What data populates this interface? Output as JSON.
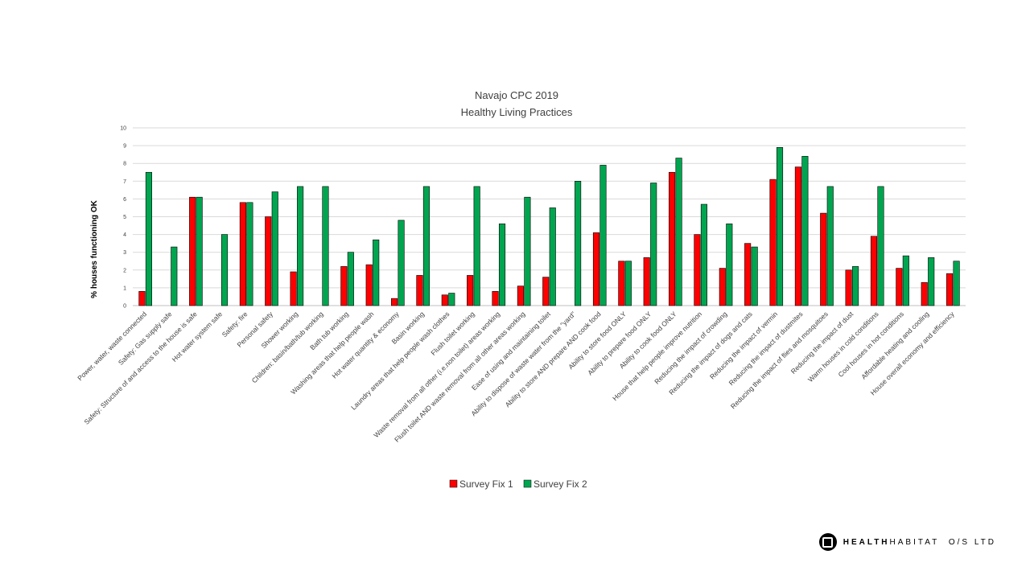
{
  "chart_data": {
    "type": "bar",
    "title": [
      "Navajo CPC 2019",
      "Healthy Living Practices"
    ],
    "xlabel": "",
    "ylabel": "% houses functioning OK",
    "ylim": [
      0,
      10
    ],
    "yticks": [
      "0",
      "1",
      "2",
      "3",
      "4",
      "5",
      "6",
      "7",
      "8",
      "9",
      "10"
    ],
    "grid": "horizontal",
    "legend": "bottom",
    "categories": [
      "Power, water, waste connected",
      "Safety: Gas supply safe",
      "Safety: Structure of and access to the house is safe",
      "Hot water system safe",
      "Safety: fire",
      "Personal safety",
      "Shower working",
      "Children: basin/bath/tub working",
      "Bath tub working",
      "Washing areas that help people wash",
      "Hot water quantity & economy",
      "Basin working",
      "Laundry areas that help people wash clothes",
      "Flush toilet working",
      "Waste removal from all other (i.e.non toilet) areas working",
      "Flush toilet AND waste removal from all other areas working",
      "Ease of using and maintaining toilet",
      "Ability to dispose of waste water from the \"yard\"",
      "Ability to store AND prepare AND cook food",
      "Ability to store food ONLY",
      "Ability to prepare food ONLY",
      "Ability to cook food ONLY",
      "House that help people improve nutrition",
      "Reducing the impact of crowding",
      "Reducing the impact of dogs and cats",
      "Reducing the impact of vermin",
      "Reducing the impact of dustmites",
      "Reducing the impact of flies and mosquitoes",
      "Reducing the impact of dust",
      "Warm houses in cold conditions",
      "Cool houses in hot conditions",
      "Affordable heating and cooling",
      "House overall economy and efficiency"
    ],
    "series": [
      {
        "name": "Survey Fix 1",
        "color": "#ff0000",
        "values": [
          0.8,
          0,
          6.1,
          0,
          5.8,
          5.0,
          1.9,
          0,
          2.2,
          2.3,
          0.4,
          1.7,
          0.6,
          1.7,
          0.8,
          1.1,
          1.6,
          0,
          4.1,
          2.5,
          2.7,
          7.5,
          4.0,
          2.1,
          3.5,
          7.1,
          7.8,
          5.2,
          2.0,
          3.9,
          2.1,
          1.3,
          1.8
        ]
      },
      {
        "name": "Survey Fix 2",
        "color": "#00a550",
        "values": [
          7.5,
          3.3,
          6.1,
          4.0,
          5.8,
          6.4,
          6.7,
          6.7,
          3.0,
          3.7,
          4.8,
          6.7,
          0.7,
          6.7,
          4.6,
          6.1,
          5.5,
          7.0,
          7.9,
          2.5,
          6.9,
          8.3,
          5.7,
          4.6,
          3.3,
          8.9,
          8.4,
          6.7,
          2.2,
          6.7,
          2.8,
          2.7,
          2.5
        ]
      }
    ]
  },
  "branding": {
    "name_bold": "HEALTH",
    "name_rest": "HABITAT",
    "suffix": "O/S LTD"
  }
}
